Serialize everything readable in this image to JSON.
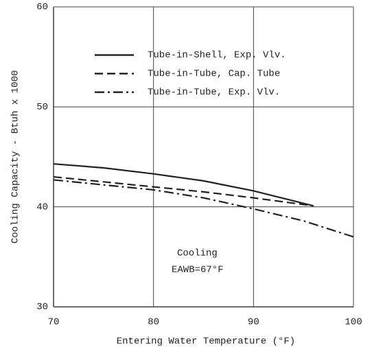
{
  "chart_data": {
    "type": "line",
    "xlabel": "Entering Water Temperature (°F)",
    "ylabel": "Cooling Capacity - Btuh x 1000",
    "annotations": [
      "Cooling",
      "EAWB=67°F"
    ],
    "xlim": [
      70,
      100
    ],
    "xticks": [
      70,
      80,
      90,
      100
    ],
    "ylim": [
      30,
      60
    ],
    "yticks": [
      30,
      40,
      50,
      60
    ],
    "grid": true,
    "series": [
      {
        "name": "Tube-in-Shell, Exp. Vlv.",
        "color": "#222",
        "style": "solid",
        "x": [
          70,
          75,
          80,
          85,
          90,
          96
        ],
        "values": [
          44.3,
          43.9,
          43.3,
          42.6,
          41.6,
          40.1
        ]
      },
      {
        "name": "Tube-in-Tube, Cap. Tube",
        "color": "#222",
        "style": "dashed",
        "x": [
          70,
          75,
          80,
          85,
          90,
          96
        ],
        "values": [
          43.0,
          42.5,
          42.0,
          41.5,
          40.9,
          40.1
        ]
      },
      {
        "name": "Tube-in-Tube, Exp. Vlv.",
        "color": "#222",
        "style": "dashdot",
        "x": [
          70,
          75,
          80,
          85,
          90,
          95,
          100
        ],
        "values": [
          42.7,
          42.2,
          41.7,
          40.9,
          39.8,
          38.6,
          37.0
        ]
      }
    ]
  }
}
